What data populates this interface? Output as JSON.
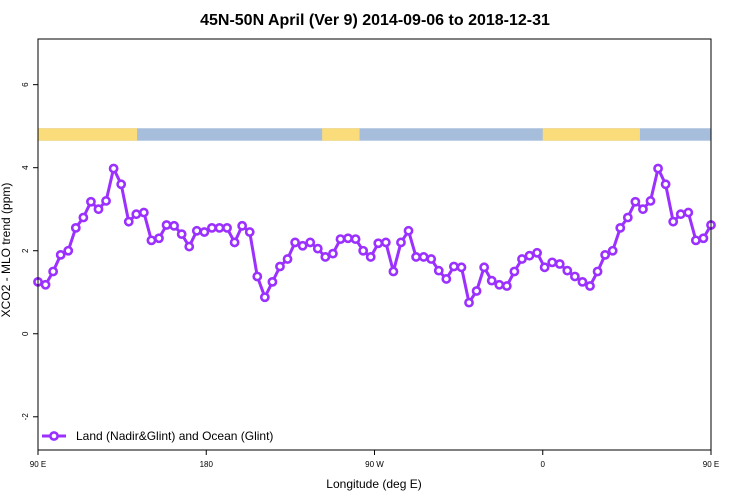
{
  "chart_data": {
    "type": "line",
    "title": "45N-50N April (Ver 9)   2014-09-06 to 2018-12-31",
    "xlabel": "Longitude (deg E)",
    "ylabel": "XCO2 - MLO trend (ppm)",
    "xlim": [
      90,
      450
    ],
    "ylim": [
      -2.8,
      7.1
    ],
    "x_ticks": [
      {
        "value": 90,
        "label": "90 E"
      },
      {
        "value": 180,
        "label": "180"
      },
      {
        "value": 270,
        "label": "90 W"
      },
      {
        "value": 360,
        "label": "0"
      },
      {
        "value": 450,
        "label": "90 E"
      },
      {
        "value": 540,
        "label": "180"
      }
    ],
    "y_ticks": [
      {
        "value": -2,
        "label": "-2"
      },
      {
        "value": 0,
        "label": "0"
      },
      {
        "value": 2,
        "label": "2"
      },
      {
        "value": 4,
        "label": "4"
      },
      {
        "value": 6,
        "label": "6"
      }
    ],
    "grid": false,
    "legend": {
      "position": "bottom-left"
    },
    "land_ocean_strip": {
      "y_range": [
        4.65,
        4.95
      ],
      "land_color": "#fadc7b",
      "ocean_color": "#a6bddb",
      "land_intervals": [
        [
          90,
          143
        ],
        [
          242,
          262
        ],
        [
          360,
          412
        ],
        [
          450,
          503
        ]
      ]
    },
    "series": [
      {
        "name": "Land (Nadir&Glint) and Ocean (Glint)",
        "color": "#9b30ff",
        "marker": "open-circle",
        "values": [
          1.25,
          1.18,
          1.5,
          1.9,
          2.0,
          2.55,
          2.8,
          3.18,
          3.0,
          3.2,
          3.98,
          3.6,
          2.7,
          2.88,
          2.92,
          2.25,
          2.3,
          2.62,
          2.6,
          2.4,
          2.1,
          2.48,
          2.45,
          2.55,
          2.55,
          2.55,
          2.2,
          2.6,
          2.45,
          1.38,
          0.88,
          1.25,
          1.62,
          1.8,
          2.2,
          2.12,
          2.2,
          2.05,
          1.85,
          1.93,
          2.28,
          2.3,
          2.28,
          2.0,
          1.85,
          2.18,
          2.2,
          1.5,
          2.2,
          2.48,
          1.85,
          1.85,
          1.8,
          1.52,
          1.32,
          1.62,
          1.6,
          0.75,
          1.03,
          1.6,
          1.28,
          1.18,
          1.15,
          1.5,
          1.8,
          1.88,
          1.95,
          1.6,
          1.72,
          1.68,
          1.52,
          1.38,
          1.25,
          1.15,
          1.5,
          1.9,
          2.0,
          2.55,
          2.8,
          3.18,
          3.0,
          3.2,
          3.98,
          3.6,
          2.7,
          2.88,
          2.92,
          2.25,
          2.3,
          2.62
        ]
      }
    ]
  }
}
